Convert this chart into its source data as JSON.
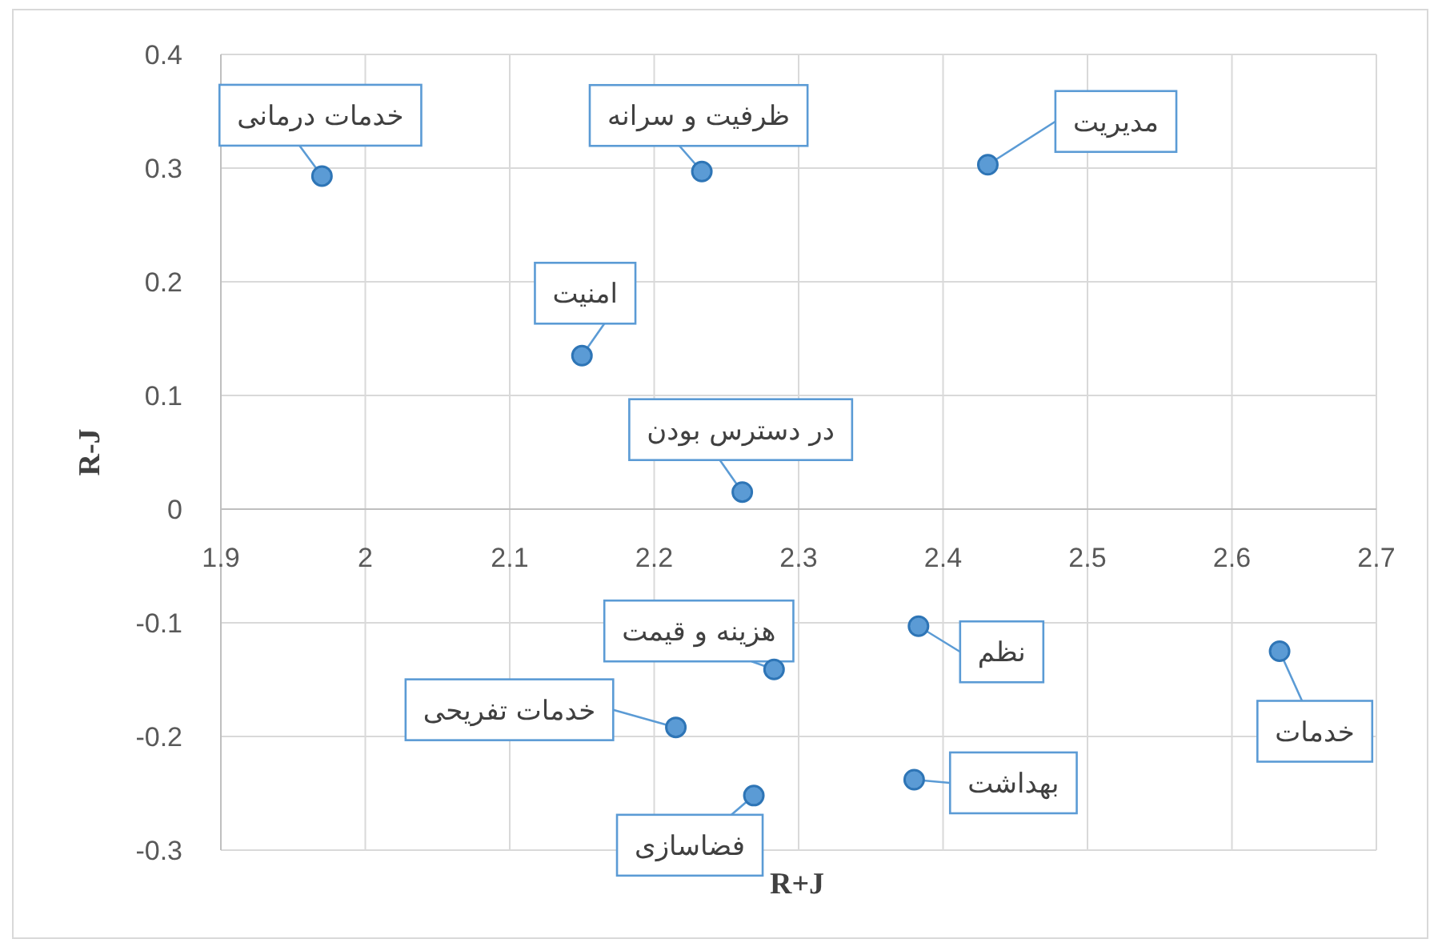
{
  "chart_data": {
    "type": "scatter",
    "xlabel": "R+J",
    "ylabel": "R-J",
    "xlim": [
      1.9,
      2.7
    ],
    "ylim": [
      -0.3,
      0.4
    ],
    "xticks": [
      1.9,
      2,
      2.1,
      2.2,
      2.3,
      2.4,
      2.5,
      2.6,
      2.7
    ],
    "yticks": [
      -0.3,
      -0.2,
      -0.1,
      0,
      0.1,
      0.2,
      0.3,
      0.4
    ],
    "grid": true,
    "marker": "circle",
    "color": "#5b9bd5",
    "x": [
      1.97,
      2.233,
      2.431,
      2.15,
      2.261,
      2.383,
      2.283,
      2.633,
      2.215,
      2.38,
      2.269
    ],
    "values": [
      0.293,
      0.297,
      0.303,
      0.135,
      0.015,
      -0.103,
      -0.141,
      -0.125,
      -0.192,
      -0.238,
      -0.252
    ],
    "annotations": [
      {
        "text": "خدمات درمانی",
        "x": 1.97,
        "y": 0.293
      },
      {
        "text": "ظرفیت و سرانه",
        "x": 2.233,
        "y": 0.297
      },
      {
        "text": "مدیریت",
        "x": 2.431,
        "y": 0.303
      },
      {
        "text": "امنیت",
        "x": 2.15,
        "y": 0.135
      },
      {
        "text": "در دسترس بودن",
        "x": 2.261,
        "y": 0.015
      },
      {
        "text": "نظم",
        "x": 2.383,
        "y": -0.103
      },
      {
        "text": "هزینه و قیمت",
        "x": 2.283,
        "y": -0.141
      },
      {
        "text": "خدمات",
        "x": 2.633,
        "y": -0.125
      },
      {
        "text": "خدمات تفریحی",
        "x": 2.215,
        "y": -0.192
      },
      {
        "text": "بهداشت",
        "x": 2.38,
        "y": -0.238
      },
      {
        "text": "فضاسازی",
        "x": 2.269,
        "y": -0.252
      }
    ]
  }
}
